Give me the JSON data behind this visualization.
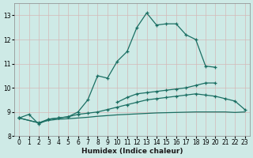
{
  "xlabel": "Humidex (Indice chaleur)",
  "bg_color": "#ceeae6",
  "grid_color": "#b8d8d4",
  "line_color": "#1a6e62",
  "xlim": [
    -0.5,
    23.5
  ],
  "ylim": [
    8.0,
    13.5
  ],
  "xticks": [
    0,
    1,
    2,
    3,
    4,
    5,
    6,
    7,
    8,
    9,
    10,
    11,
    12,
    13,
    14,
    15,
    16,
    17,
    18,
    19,
    20,
    21,
    22,
    23
  ],
  "yticks": [
    8,
    9,
    10,
    11,
    12,
    13
  ],
  "line1_x": [
    0,
    1,
    2,
    3,
    4,
    5,
    6,
    7,
    8,
    9,
    10,
    11,
    12,
    13,
    14,
    15,
    16,
    17,
    18,
    19,
    20,
    21,
    22,
    23
  ],
  "line1_y": [
    8.75,
    8.9,
    8.5,
    8.7,
    8.75,
    8.8,
    9.0,
    9.5,
    10.5,
    10.4,
    11.1,
    11.5,
    12.5,
    13.1,
    12.6,
    12.65,
    12.65,
    12.2,
    12.0,
    10.9,
    10.85,
    null,
    null,
    null
  ],
  "line2_x": [
    0,
    1,
    2,
    3,
    4,
    5,
    6,
    7,
    8,
    9,
    10,
    11,
    12,
    13,
    14,
    15,
    16,
    17,
    18,
    19,
    20,
    21,
    22,
    23
  ],
  "line2_y": [
    8.75,
    null,
    null,
    null,
    null,
    null,
    null,
    null,
    null,
    null,
    9.4,
    9.6,
    9.75,
    9.8,
    9.85,
    9.9,
    9.95,
    10.0,
    10.1,
    10.2,
    10.2,
    null,
    null,
    null
  ],
  "line3_x": [
    0,
    2,
    3,
    4,
    5,
    6,
    7,
    8,
    9,
    10,
    11,
    12,
    13,
    14,
    15,
    16,
    17,
    18,
    19,
    20,
    21,
    22,
    23
  ],
  "line3_y": [
    8.75,
    8.55,
    8.7,
    8.75,
    8.8,
    8.9,
    8.95,
    9.0,
    9.1,
    9.2,
    9.3,
    9.4,
    9.5,
    9.55,
    9.6,
    9.65,
    9.7,
    9.75,
    9.7,
    9.65,
    9.55,
    9.45,
    9.1
  ],
  "line4_x": [
    0,
    2,
    3,
    4,
    5,
    6,
    7,
    8,
    9,
    10,
    11,
    12,
    13,
    14,
    15,
    16,
    17,
    18,
    19,
    20,
    21,
    22,
    23
  ],
  "line4_y": [
    8.75,
    8.55,
    8.65,
    8.7,
    8.72,
    8.75,
    8.78,
    8.82,
    8.85,
    8.88,
    8.9,
    8.92,
    8.94,
    8.96,
    8.97,
    8.98,
    8.99,
    9.0,
    9.0,
    9.0,
    9.0,
    8.98,
    9.0
  ]
}
